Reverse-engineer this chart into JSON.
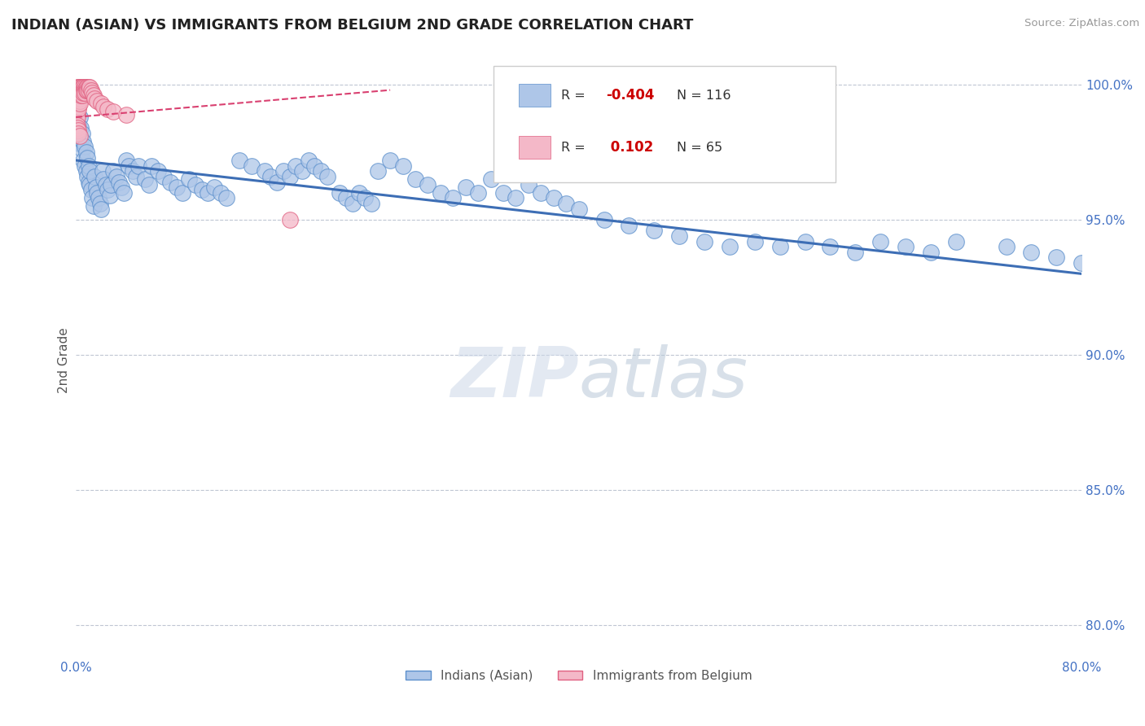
{
  "title": "INDIAN (ASIAN) VS IMMIGRANTS FROM BELGIUM 2ND GRADE CORRELATION CHART",
  "source_text": "Source: ZipAtlas.com",
  "ylabel": "2nd Grade",
  "xlim": [
    0.0,
    0.8
  ],
  "ylim": [
    0.788,
    1.008
  ],
  "yticks": [
    0.8,
    0.85,
    0.9,
    0.95,
    1.0
  ],
  "ytick_labels": [
    "80.0%",
    "85.0%",
    "90.0%",
    "95.0%",
    "100.0%"
  ],
  "xticks": [
    0.0,
    0.1,
    0.2,
    0.3,
    0.4,
    0.5,
    0.6,
    0.7,
    0.8
  ],
  "xtick_labels": [
    "0.0%",
    "",
    "",
    "",
    "",
    "",
    "",
    "",
    "80.0%"
  ],
  "blue_R": -0.404,
  "blue_N": 116,
  "pink_R": 0.102,
  "pink_N": 65,
  "blue_color": "#aec6e8",
  "blue_edge_color": "#5b8fcc",
  "blue_line_color": "#3d6eb5",
  "pink_color": "#f4b8c8",
  "pink_edge_color": "#e06080",
  "pink_line_color": "#d94070",
  "background_color": "#ffffff",
  "grid_color": "#b0b8c8",
  "axis_color": "#4472c4",
  "title_color": "#222222",
  "watermark": "ZIPatlas",
  "legend_label_blue": "Indians (Asian)",
  "legend_label_pink": "Immigrants from Belgium",
  "blue_trend_x0": 0.0,
  "blue_trend_y0": 0.972,
  "blue_trend_x1": 0.8,
  "blue_trend_y1": 0.93,
  "pink_trend_x0": 0.0,
  "pink_trend_y0": 0.988,
  "pink_trend_x1": 0.25,
  "pink_trend_y1": 0.998,
  "blue_scatter_x": [
    0.001,
    0.002,
    0.002,
    0.003,
    0.003,
    0.004,
    0.004,
    0.005,
    0.005,
    0.006,
    0.006,
    0.007,
    0.007,
    0.008,
    0.008,
    0.009,
    0.009,
    0.01,
    0.01,
    0.011,
    0.011,
    0.012,
    0.013,
    0.014,
    0.015,
    0.016,
    0.017,
    0.018,
    0.019,
    0.02,
    0.021,
    0.022,
    0.024,
    0.025,
    0.027,
    0.028,
    0.03,
    0.032,
    0.034,
    0.036,
    0.038,
    0.04,
    0.042,
    0.045,
    0.048,
    0.05,
    0.055,
    0.058,
    0.06,
    0.065,
    0.07,
    0.075,
    0.08,
    0.085,
    0.09,
    0.095,
    0.1,
    0.105,
    0.11,
    0.115,
    0.12,
    0.13,
    0.14,
    0.15,
    0.155,
    0.16,
    0.165,
    0.17,
    0.175,
    0.18,
    0.185,
    0.19,
    0.195,
    0.2,
    0.21,
    0.215,
    0.22,
    0.225,
    0.23,
    0.235,
    0.24,
    0.25,
    0.26,
    0.27,
    0.28,
    0.29,
    0.3,
    0.31,
    0.32,
    0.33,
    0.34,
    0.35,
    0.36,
    0.37,
    0.38,
    0.39,
    0.4,
    0.42,
    0.44,
    0.46,
    0.48,
    0.5,
    0.52,
    0.54,
    0.56,
    0.58,
    0.6,
    0.62,
    0.64,
    0.66,
    0.68,
    0.7,
    0.74,
    0.76,
    0.78,
    0.8
  ],
  "blue_scatter_y": [
    0.99,
    0.985,
    0.993,
    0.981,
    0.988,
    0.978,
    0.984,
    0.976,
    0.982,
    0.972,
    0.979,
    0.97,
    0.977,
    0.968,
    0.975,
    0.966,
    0.973,
    0.964,
    0.97,
    0.963,
    0.968,
    0.961,
    0.958,
    0.955,
    0.966,
    0.962,
    0.96,
    0.958,
    0.956,
    0.954,
    0.968,
    0.965,
    0.963,
    0.961,
    0.959,
    0.963,
    0.968,
    0.966,
    0.964,
    0.962,
    0.96,
    0.972,
    0.97,
    0.968,
    0.966,
    0.97,
    0.965,
    0.963,
    0.97,
    0.968,
    0.966,
    0.964,
    0.962,
    0.96,
    0.965,
    0.963,
    0.961,
    0.96,
    0.962,
    0.96,
    0.958,
    0.972,
    0.97,
    0.968,
    0.966,
    0.964,
    0.968,
    0.966,
    0.97,
    0.968,
    0.972,
    0.97,
    0.968,
    0.966,
    0.96,
    0.958,
    0.956,
    0.96,
    0.958,
    0.956,
    0.968,
    0.972,
    0.97,
    0.965,
    0.963,
    0.96,
    0.958,
    0.962,
    0.96,
    0.965,
    0.96,
    0.958,
    0.963,
    0.96,
    0.958,
    0.956,
    0.954,
    0.95,
    0.948,
    0.946,
    0.944,
    0.942,
    0.94,
    0.942,
    0.94,
    0.942,
    0.94,
    0.938,
    0.942,
    0.94,
    0.938,
    0.942,
    0.94,
    0.938,
    0.936,
    0.934
  ],
  "pink_scatter_x": [
    0.001,
    0.001,
    0.001,
    0.001,
    0.001,
    0.001,
    0.001,
    0.001,
    0.001,
    0.001,
    0.001,
    0.001,
    0.002,
    0.002,
    0.002,
    0.002,
    0.002,
    0.002,
    0.002,
    0.002,
    0.002,
    0.003,
    0.003,
    0.003,
    0.003,
    0.003,
    0.003,
    0.003,
    0.004,
    0.004,
    0.004,
    0.004,
    0.005,
    0.005,
    0.005,
    0.005,
    0.006,
    0.006,
    0.006,
    0.007,
    0.007,
    0.007,
    0.008,
    0.008,
    0.009,
    0.009,
    0.01,
    0.01,
    0.011,
    0.012,
    0.013,
    0.014,
    0.015,
    0.017,
    0.02,
    0.022,
    0.025,
    0.03,
    0.04,
    0.001,
    0.001,
    0.002,
    0.002,
    0.003,
    0.17
  ],
  "pink_scatter_y": [
    0.999,
    0.998,
    0.997,
    0.996,
    0.995,
    0.994,
    0.993,
    0.992,
    0.991,
    0.99,
    0.989,
    0.988,
    0.999,
    0.998,
    0.997,
    0.996,
    0.995,
    0.994,
    0.993,
    0.992,
    0.991,
    0.999,
    0.998,
    0.997,
    0.996,
    0.995,
    0.994,
    0.993,
    0.999,
    0.998,
    0.997,
    0.996,
    0.999,
    0.998,
    0.997,
    0.996,
    0.999,
    0.998,
    0.997,
    0.999,
    0.998,
    0.997,
    0.999,
    0.998,
    0.999,
    0.998,
    0.999,
    0.998,
    0.999,
    0.998,
    0.997,
    0.996,
    0.995,
    0.994,
    0.993,
    0.992,
    0.991,
    0.99,
    0.989,
    0.985,
    0.984,
    0.983,
    0.982,
    0.981,
    0.95
  ]
}
